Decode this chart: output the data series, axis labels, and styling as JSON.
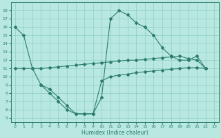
{
  "line1_x": [
    0,
    1,
    2,
    3,
    4,
    5,
    6,
    7,
    8,
    9,
    10,
    11,
    12,
    13,
    14,
    15,
    16,
    17,
    18,
    19,
    20,
    21,
    22
  ],
  "line1_y": [
    16,
    15,
    11,
    9,
    8,
    7,
    6,
    5.5,
    5.5,
    5.5,
    7.5,
    17,
    18,
    17.5,
    16.5,
    16,
    15,
    13.5,
    12.5,
    12,
    12,
    12.5,
    11
  ],
  "line2_x": [
    0,
    1,
    2,
    3,
    4,
    5,
    6,
    7,
    8,
    9,
    10,
    11,
    12,
    13,
    14,
    15,
    16,
    17,
    18,
    19,
    20,
    21,
    22
  ],
  "line2_y": [
    11,
    11,
    11,
    11,
    11.1,
    11.2,
    11.3,
    11.4,
    11.5,
    11.6,
    11.7,
    11.8,
    11.9,
    12.0,
    12.0,
    12.1,
    12.2,
    12.3,
    12.4,
    12.5,
    12.2,
    12.0,
    11.0
  ],
  "line3_x": [
    3,
    4,
    5,
    6,
    7,
    8,
    9,
    10,
    11,
    12,
    13,
    14,
    15,
    16,
    17,
    18,
    19,
    20,
    21,
    22
  ],
  "line3_y": [
    9.0,
    8.5,
    7.5,
    6.5,
    5.5,
    5.5,
    5.5,
    9.5,
    10.0,
    10.2,
    10.3,
    10.5,
    10.6,
    10.7,
    10.8,
    10.9,
    11.0,
    11.1,
    11.1,
    11.0
  ],
  "color": "#2d7d6e",
  "bg_color": "#b8e8e0",
  "grid_color": "#8ecfc7",
  "xlabel": "Humidex (Indice chaleur)",
  "xlim": [
    -0.5,
    23.5
  ],
  "ylim": [
    4.5,
    19
  ],
  "yticks": [
    5,
    6,
    7,
    8,
    9,
    10,
    11,
    12,
    13,
    14,
    15,
    16,
    17,
    18
  ],
  "xticks": [
    0,
    1,
    2,
    3,
    4,
    5,
    6,
    7,
    8,
    9,
    10,
    11,
    12,
    13,
    14,
    15,
    16,
    17,
    18,
    19,
    20,
    21,
    22,
    23
  ]
}
